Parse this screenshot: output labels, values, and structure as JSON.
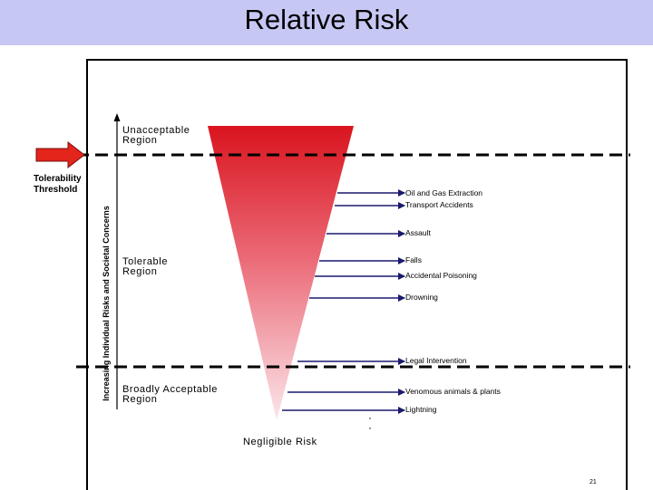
{
  "title": "Relative Risk",
  "threshold_label": [
    "Tolerability",
    "Threshold"
  ],
  "vertical_axis_label": "Increasing Individual Risks and Societal Concerns",
  "regions": {
    "unacceptable": [
      "Unacceptable",
      "Region"
    ],
    "tolerable": [
      "Tolerable",
      "Region"
    ],
    "broadly_acceptable": [
      "Broadly Acceptable",
      "Region"
    ]
  },
  "bottom_label": "Negligible Risk",
  "risk_items": [
    "Oil and Gas Extraction",
    "Transport Accidents",
    "Assault",
    "Falls",
    "Accidental Poisoning",
    "Drowning",
    "Legal Intervention",
    "Venomous animals & plants",
    "Lightning"
  ],
  "page_number": "21",
  "colors": {
    "title_bar": "#c7c7f3",
    "triangle_top": "#d9141e",
    "triangle_bottom": "#fbe6ea",
    "arrow": "#1a1a6e",
    "threshold_arrow": "#e3251b"
  }
}
